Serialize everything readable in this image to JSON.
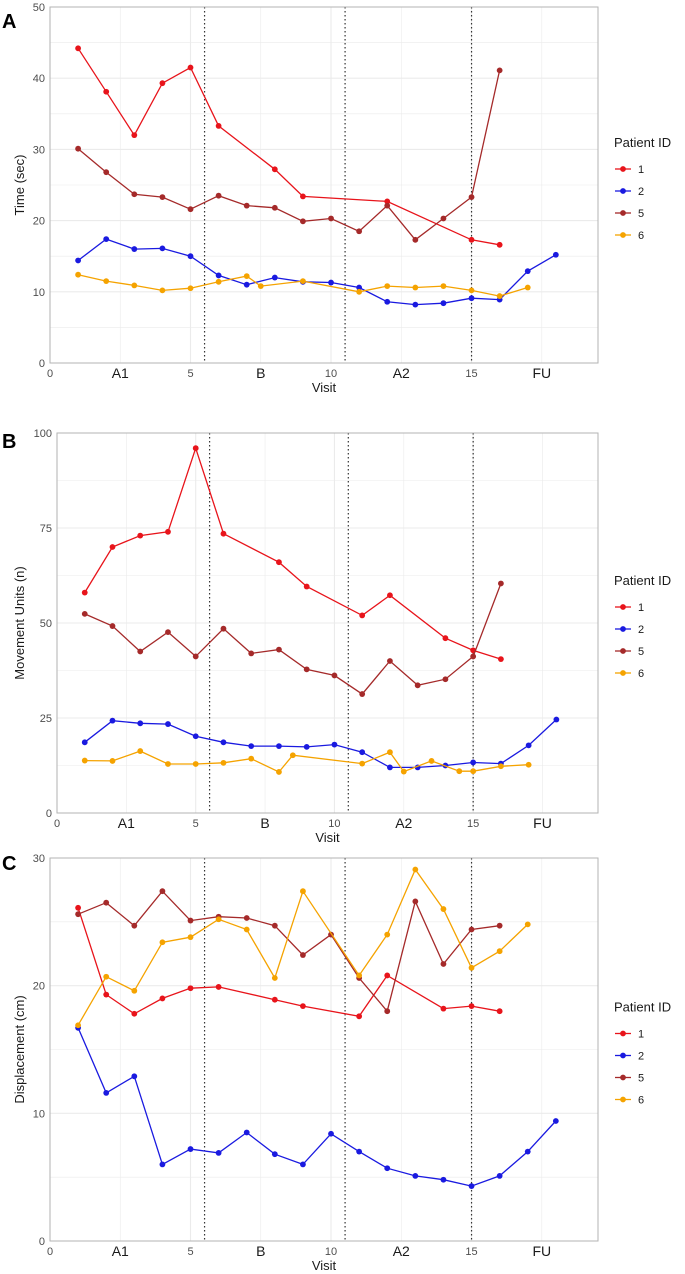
{
  "colors": {
    "series": {
      "1": "#e8141b",
      "2": "#1a1ae0",
      "5": "#a52a2a",
      "6": "#f5a300"
    },
    "grid": "#ebebeb",
    "border": "#b3b3b3",
    "phase_line": "#333333"
  },
  "chart_data": [
    {
      "type": "line",
      "panel_letter": "A",
      "xlabel": "Visit",
      "ylabel": "Time (sec)",
      "xlim": [
        0,
        19.5
      ],
      "ylim": [
        0,
        50
      ],
      "x_ticks": [
        0,
        5,
        10,
        15
      ],
      "y_ticks": [
        0,
        10,
        20,
        30,
        40,
        50
      ],
      "phase_lines": [
        5.5,
        10.5,
        15
      ],
      "phase_labels": [
        {
          "label": "A1",
          "x": 2.5
        },
        {
          "label": "B",
          "x": 7.5
        },
        {
          "label": "A2",
          "x": 12.5
        },
        {
          "label": "FU",
          "x": 17.5
        }
      ],
      "legend": {
        "title": "Patient ID",
        "entries": [
          "1",
          "2",
          "5",
          "6"
        ]
      },
      "series": [
        {
          "name": "1",
          "x": [
            1,
            2,
            3,
            4,
            5,
            6,
            8,
            9,
            12,
            15,
            16
          ],
          "values": [
            44.2,
            38.1,
            32.0,
            39.3,
            41.5,
            33.3,
            27.2,
            23.4,
            22.7,
            17.3,
            16.6
          ]
        },
        {
          "name": "2",
          "x": [
            1,
            2,
            3,
            4,
            5,
            6,
            7,
            8,
            9,
            10,
            11,
            12,
            13,
            14,
            15,
            16,
            17,
            18
          ],
          "values": [
            14.4,
            17.4,
            16.0,
            16.1,
            15.0,
            12.3,
            11.0,
            12.0,
            11.4,
            11.3,
            10.6,
            8.6,
            8.2,
            8.4,
            9.1,
            8.9,
            12.9,
            15.2
          ]
        },
        {
          "name": "5",
          "x": [
            1,
            2,
            3,
            4,
            5,
            6,
            7,
            8,
            9,
            10,
            11,
            12,
            13,
            14,
            15,
            16
          ],
          "values": [
            30.1,
            26.8,
            23.7,
            23.3,
            21.6,
            23.5,
            22.1,
            21.8,
            19.9,
            20.3,
            18.5,
            22.1,
            17.3,
            20.3,
            23.3,
            41.1
          ]
        },
        {
          "name": "6",
          "x": [
            1,
            2,
            3,
            4,
            5,
            6,
            7,
            7.5,
            9,
            11,
            12,
            13,
            14,
            15,
            16,
            17
          ],
          "values": [
            12.4,
            11.5,
            10.9,
            10.2,
            10.5,
            11.4,
            12.2,
            10.8,
            11.5,
            10.0,
            10.8,
            10.6,
            10.8,
            10.2,
            9.4,
            10.6
          ]
        }
      ]
    },
    {
      "type": "line",
      "panel_letter": "B",
      "xlabel": "Visit",
      "ylabel": "Movement Units (n)",
      "xlim": [
        0,
        19.5
      ],
      "ylim": [
        0,
        100
      ],
      "x_ticks": [
        0,
        5,
        10,
        15
      ],
      "y_ticks": [
        0,
        25,
        50,
        75,
        100
      ],
      "phase_lines": [
        5.5,
        10.5,
        15
      ],
      "phase_labels": [
        {
          "label": "A1",
          "x": 2.5
        },
        {
          "label": "B",
          "x": 7.5
        },
        {
          "label": "A2",
          "x": 12.5
        },
        {
          "label": "FU",
          "x": 17.5
        }
      ],
      "legend": {
        "title": "Patient ID",
        "entries": [
          "1",
          "2",
          "5",
          "6"
        ]
      },
      "series": [
        {
          "name": "1",
          "x": [
            1,
            2,
            3,
            4,
            5,
            6,
            8,
            9,
            11,
            12,
            14,
            15,
            16
          ],
          "values": [
            58,
            70,
            73,
            74,
            96,
            73.5,
            66,
            59.6,
            52,
            57.3,
            46,
            42.8,
            40.5
          ]
        },
        {
          "name": "2",
          "x": [
            1,
            2,
            3,
            4,
            5,
            6,
            7,
            8,
            9,
            10,
            11,
            12,
            13,
            14,
            15,
            16,
            17,
            18
          ],
          "values": [
            18.6,
            24.3,
            23.6,
            23.4,
            20.2,
            18.6,
            17.6,
            17.6,
            17.4,
            18.0,
            16.0,
            12.0,
            12.0,
            12.5,
            13.3,
            13.0,
            17.8,
            24.6
          ]
        },
        {
          "name": "5",
          "x": [
            1,
            2,
            3,
            4,
            5,
            6,
            7,
            8,
            9,
            10,
            11,
            12,
            13,
            14,
            15,
            16
          ],
          "values": [
            52.4,
            49.2,
            42.5,
            47.6,
            41.2,
            48.5,
            42.0,
            43.0,
            37.8,
            36.2,
            31.3,
            40.0,
            33.6,
            35.2,
            41.2,
            60.4
          ]
        },
        {
          "name": "6",
          "x": [
            1,
            2,
            3,
            4,
            5,
            6,
            7,
            8,
            8.5,
            11,
            12,
            12.5,
            13.5,
            14.5,
            15,
            16,
            17
          ],
          "values": [
            13.8,
            13.7,
            16.3,
            12.9,
            12.9,
            13.2,
            14.3,
            10.8,
            15.2,
            13.0,
            16.0,
            10.9,
            13.7,
            11.0,
            11.0,
            12.3,
            12.7
          ]
        }
      ]
    },
    {
      "type": "line",
      "panel_letter": "C",
      "xlabel": "Visit",
      "ylabel": "Displacement (cm)",
      "xlim": [
        0,
        19.5
      ],
      "ylim": [
        0,
        30
      ],
      "x_ticks": [
        0,
        5,
        10,
        15
      ],
      "y_ticks": [
        0,
        10,
        20,
        30
      ],
      "phase_lines": [
        5.5,
        10.5,
        15
      ],
      "phase_labels": [
        {
          "label": "A1",
          "x": 2.5
        },
        {
          "label": "B",
          "x": 7.5
        },
        {
          "label": "A2",
          "x": 12.5
        },
        {
          "label": "FU",
          "x": 17.5
        }
      ],
      "legend": {
        "title": "Patient ID",
        "entries": [
          "1",
          "2",
          "5",
          "6"
        ]
      },
      "series": [
        {
          "name": "1",
          "x": [
            1,
            2,
            3,
            4,
            5,
            6,
            8,
            9,
            11,
            12,
            14,
            15,
            16
          ],
          "values": [
            26.1,
            19.3,
            17.8,
            19.0,
            19.8,
            19.9,
            18.9,
            18.4,
            17.6,
            20.8,
            18.2,
            18.4,
            18.0
          ]
        },
        {
          "name": "2",
          "x": [
            1,
            2,
            3,
            4,
            5,
            6,
            7,
            8,
            9,
            10,
            11,
            12,
            13,
            14,
            15,
            16,
            17,
            18
          ],
          "values": [
            16.7,
            11.6,
            12.9,
            6.0,
            7.2,
            6.9,
            8.5,
            6.8,
            6.0,
            8.4,
            7.0,
            5.7,
            5.1,
            4.8,
            4.3,
            5.1,
            7.0,
            9.4
          ]
        },
        {
          "name": "5",
          "x": [
            1,
            2,
            3,
            4,
            5,
            6,
            7,
            8,
            9,
            10,
            11,
            12,
            13,
            14,
            15,
            16
          ],
          "values": [
            25.6,
            26.5,
            24.7,
            27.4,
            25.1,
            25.4,
            25.3,
            24.7,
            22.4,
            24.0,
            20.6,
            18.0,
            26.6,
            21.7,
            24.4,
            24.7
          ]
        },
        {
          "name": "6",
          "x": [
            1,
            2,
            3,
            4,
            5,
            6,
            7,
            8,
            9,
            11,
            12,
            13,
            14,
            15,
            16,
            17
          ],
          "values": [
            16.9,
            20.7,
            19.6,
            23.4,
            23.8,
            25.2,
            24.4,
            20.6,
            27.4,
            20.8,
            24.0,
            29.1,
            26.0,
            21.4,
            22.7,
            24.8
          ]
        }
      ]
    }
  ]
}
